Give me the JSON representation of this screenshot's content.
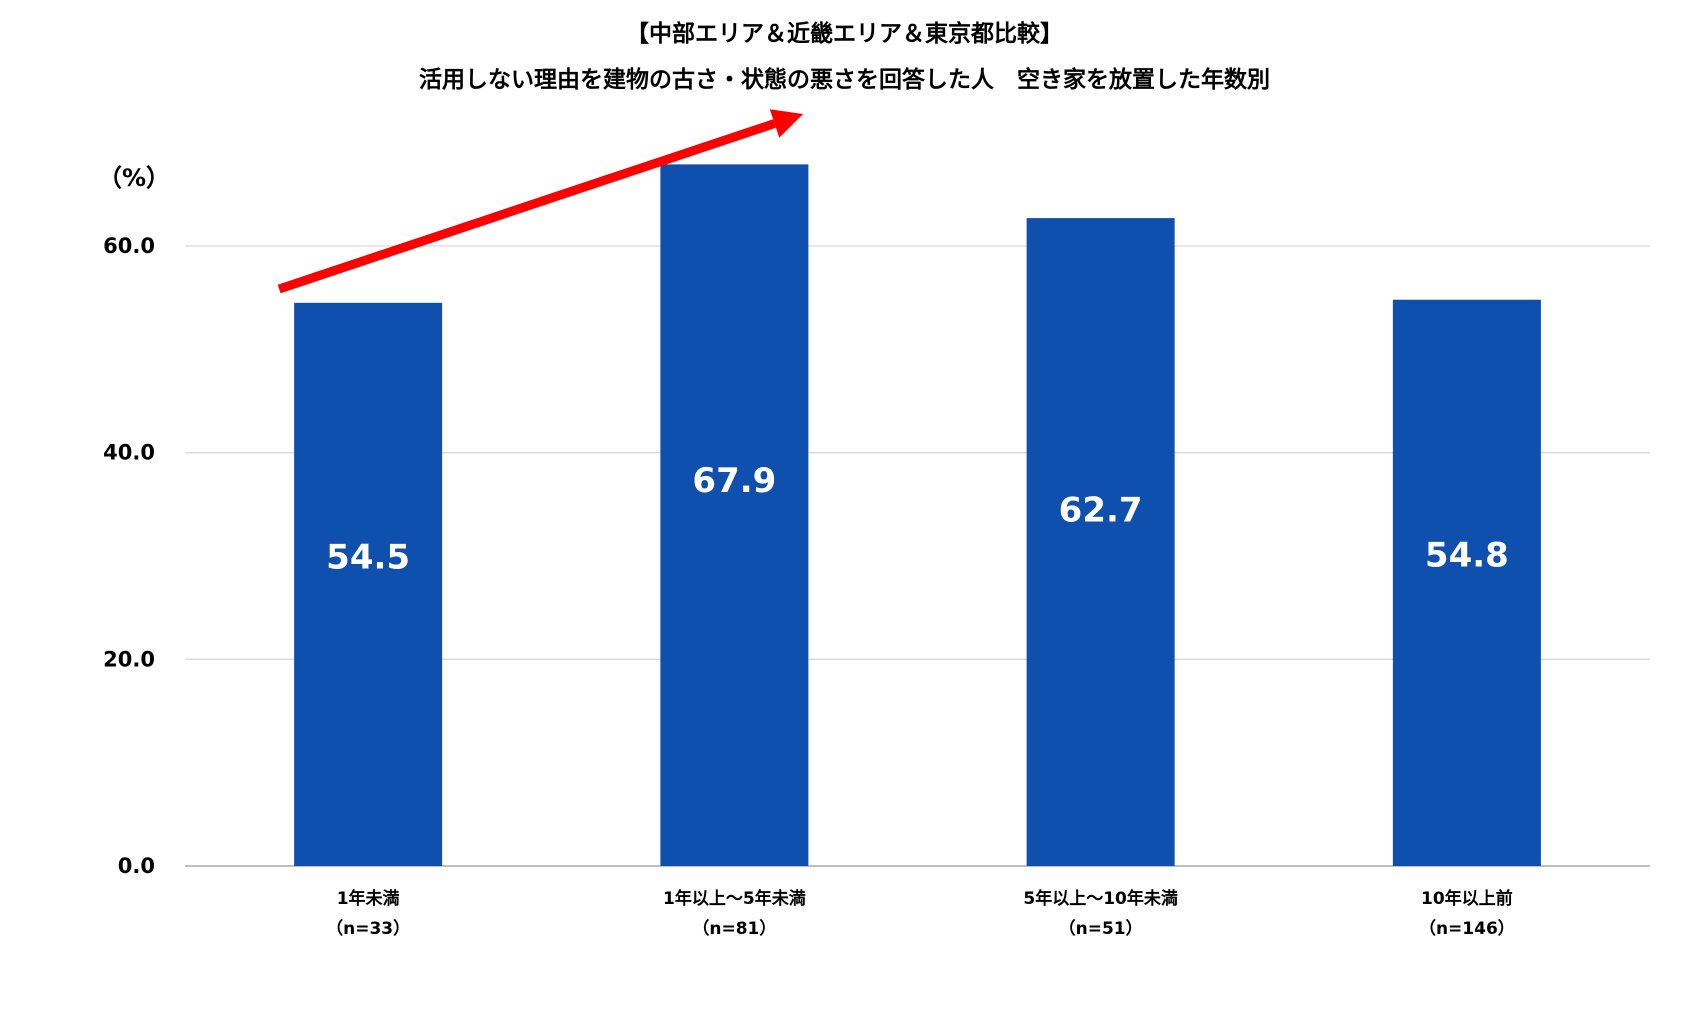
{
  "chart_data": {
    "type": "bar",
    "title": "【中部エリア＆近畿エリア＆東京都比較】",
    "subtitle": "活用しない理由を建物の古さ・状態の悪さを回答した人　空き家を放置した年数別",
    "ylabel": "（%）",
    "categories": [
      "1年未満",
      "1年以上～5年未満",
      "5年以上～10年未満",
      "10年以上前"
    ],
    "sample_sizes": [
      "（n=33）",
      "（n=81）",
      "（n=51）",
      "（n=146）"
    ],
    "values": [
      54.5,
      67.9,
      62.7,
      54.8
    ],
    "value_labels": [
      "54.5",
      "67.9",
      "62.7",
      "54.8"
    ],
    "ylim": [
      0,
      70
    ],
    "yticks": [
      0,
      20,
      40,
      60
    ],
    "ytick_labels": [
      "0.0",
      "20.0",
      "40.0",
      "60.0"
    ],
    "grid": true,
    "bar_color": "#0F4FAE",
    "annotation": {
      "type": "arrow",
      "color": "#FF0000",
      "from_category": "1年未満",
      "to_category": "1年以上～5年未満"
    }
  }
}
